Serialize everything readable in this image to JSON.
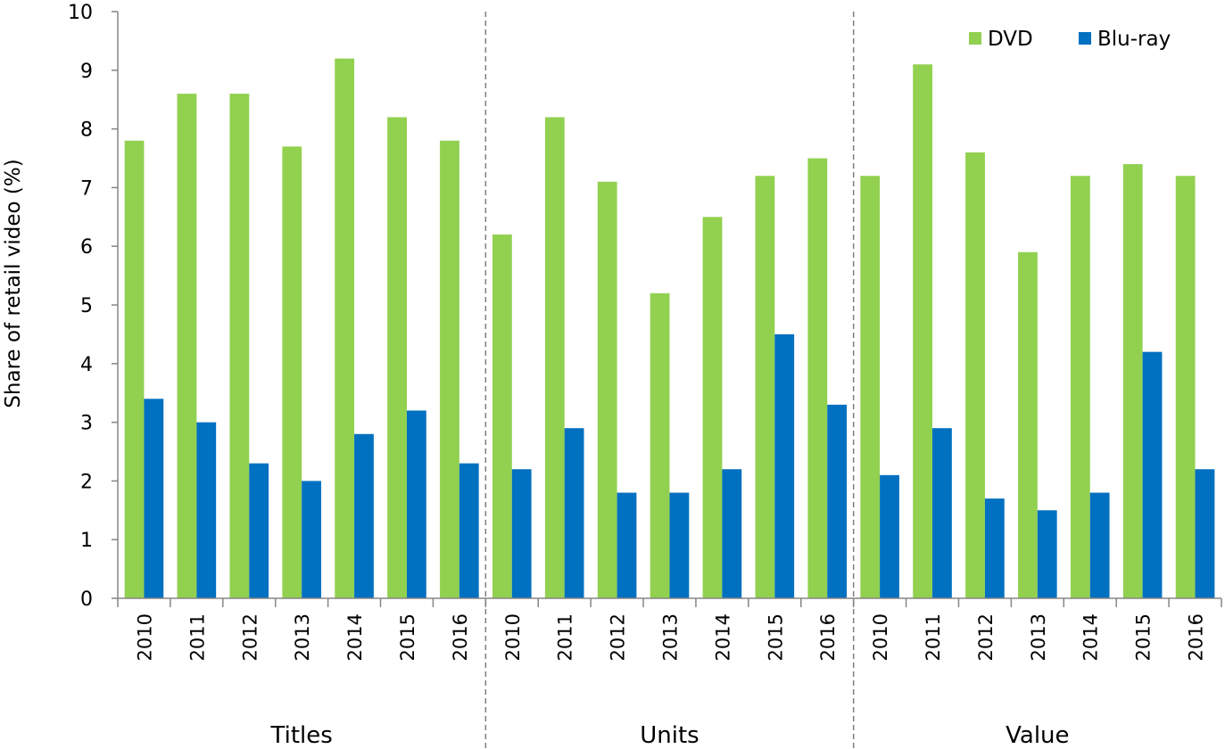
{
  "chart_data": {
    "type": "bar",
    "title": "",
    "ylabel": "Share of retail video (%)",
    "xlabel": "",
    "ylim": [
      0,
      10
    ],
    "yticks": [
      "0",
      "1",
      "2",
      "3",
      "4",
      "5",
      "6",
      "7",
      "8",
      "9",
      "10"
    ],
    "grid": false,
    "legend_position": "top-right",
    "groups": [
      {
        "name": "Titles",
        "categories": [
          "2010",
          "2011",
          "2012",
          "2013",
          "2014",
          "2015",
          "2016"
        ],
        "series": [
          {
            "name": "DVD",
            "values": [
              7.8,
              8.6,
              8.6,
              7.7,
              9.2,
              8.2,
              7.8
            ]
          },
          {
            "name": "Blu-ray",
            "values": [
              3.4,
              3.0,
              2.3,
              2.0,
              2.8,
              3.2,
              2.3
            ]
          }
        ]
      },
      {
        "name": "Units",
        "categories": [
          "2010",
          "2011",
          "2012",
          "2013",
          "2014",
          "2015",
          "2016"
        ],
        "series": [
          {
            "name": "DVD",
            "values": [
              6.2,
              8.2,
              7.1,
              5.2,
              6.5,
              7.2,
              7.5
            ]
          },
          {
            "name": "Blu-ray",
            "values": [
              2.2,
              2.9,
              1.8,
              1.8,
              2.2,
              4.5,
              3.3
            ]
          }
        ]
      },
      {
        "name": "Value",
        "categories": [
          "2010",
          "2011",
          "2012",
          "2013",
          "2014",
          "2015",
          "2016"
        ],
        "series": [
          {
            "name": "DVD",
            "values": [
              7.2,
              9.1,
              7.6,
              5.9,
              7.2,
              7.4,
              7.2
            ]
          },
          {
            "name": "Blu-ray",
            "values": [
              2.1,
              2.9,
              1.7,
              1.5,
              1.8,
              4.2,
              2.2
            ]
          }
        ]
      }
    ],
    "colors": {
      "DVD": "#92d050",
      "Blu-ray": "#0070c0"
    }
  }
}
